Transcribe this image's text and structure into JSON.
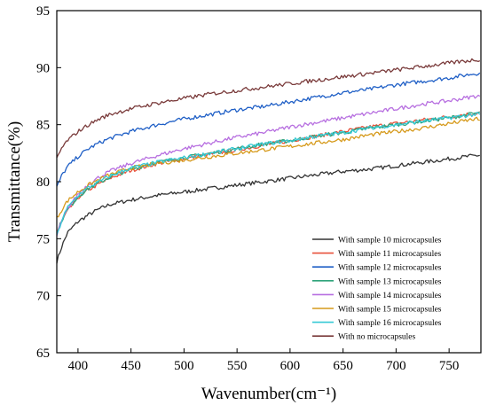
{
  "chart_data": {
    "type": "line",
    "title": "",
    "xlabel": "Wavenumber(cm⁻¹)",
    "ylabel": "Transmittance(%)",
    "xlim": [
      380,
      780
    ],
    "ylim": [
      65,
      95
    ],
    "xticks": [
      400,
      450,
      500,
      550,
      600,
      650,
      700,
      750
    ],
    "yticks": [
      65,
      70,
      75,
      80,
      85,
      90,
      95
    ],
    "grid": false,
    "legend_position": "bottom-right",
    "x": [
      380,
      385,
      390,
      400,
      410,
      420,
      430,
      450,
      475,
      500,
      525,
      550,
      575,
      600,
      625,
      650,
      675,
      700,
      725,
      750,
      775,
      780
    ],
    "series": [
      {
        "name": "With sample 10 microcapsules",
        "color": "#333333",
        "values": [
          73.0,
          74.4,
          75.5,
          76.5,
          77.1,
          77.6,
          78.0,
          78.4,
          78.8,
          79.1,
          79.4,
          79.7,
          80.0,
          80.3,
          80.6,
          80.9,
          81.1,
          81.4,
          81.7,
          82.0,
          82.3,
          82.3
        ]
      },
      {
        "name": "With sample 11 microcapsules",
        "color": "#e8503a",
        "values": [
          75.5,
          76.6,
          77.4,
          78.6,
          79.3,
          79.8,
          80.3,
          81.0,
          81.6,
          82.0,
          82.4,
          82.8,
          83.2,
          83.6,
          84.0,
          84.4,
          84.8,
          85.1,
          85.4,
          85.7,
          86.0,
          86.1
        ]
      },
      {
        "name": "With sample 12 microcapsules",
        "color": "#1f5fc6",
        "values": [
          79.5,
          80.6,
          81.3,
          82.2,
          82.9,
          83.4,
          83.8,
          84.4,
          85.0,
          85.5,
          85.9,
          86.3,
          86.6,
          87.0,
          87.4,
          87.8,
          88.1,
          88.5,
          88.8,
          89.1,
          89.5,
          89.5
        ]
      },
      {
        "name": "With sample 13 microcapsules",
        "color": "#2ea37a",
        "values": [
          75.5,
          76.7,
          77.5,
          78.7,
          79.4,
          79.9,
          80.4,
          81.1,
          81.7,
          82.1,
          82.5,
          82.9,
          83.3,
          83.6,
          84.0,
          84.3,
          84.7,
          85.0,
          85.3,
          85.6,
          86.0,
          86.0
        ]
      },
      {
        "name": "With sample 14 microcapsules",
        "color": "#b76fe0",
        "values": [
          75.3,
          76.6,
          77.6,
          78.9,
          79.8,
          80.4,
          80.9,
          81.6,
          82.3,
          82.9,
          83.4,
          83.9,
          84.3,
          84.8,
          85.2,
          85.6,
          86.0,
          86.4,
          86.8,
          87.1,
          87.5,
          87.5
        ]
      },
      {
        "name": "With sample 15 microcapsules",
        "color": "#d69a1c",
        "values": [
          76.8,
          77.6,
          78.3,
          79.1,
          79.7,
          80.2,
          80.6,
          81.2,
          81.6,
          81.9,
          82.2,
          82.5,
          82.8,
          83.1,
          83.4,
          83.7,
          84.1,
          84.4,
          84.7,
          85.1,
          85.5,
          85.4
        ]
      },
      {
        "name": "With sample 16 microcapsules",
        "color": "#35c9d6",
        "values": [
          75.2,
          76.7,
          77.7,
          78.8,
          79.5,
          80.0,
          80.5,
          81.2,
          81.7,
          82.1,
          82.5,
          82.9,
          83.3,
          83.6,
          84.0,
          84.3,
          84.7,
          85.0,
          85.3,
          85.6,
          85.9,
          85.9
        ]
      },
      {
        "name": "With no microcapsules",
        "color": "#7a3b3b",
        "values": [
          82.0,
          83.0,
          83.6,
          84.4,
          85.0,
          85.5,
          85.9,
          86.4,
          86.9,
          87.3,
          87.7,
          88.0,
          88.3,
          88.6,
          88.9,
          89.2,
          89.5,
          89.8,
          90.1,
          90.4,
          90.7,
          90.7
        ]
      }
    ]
  }
}
